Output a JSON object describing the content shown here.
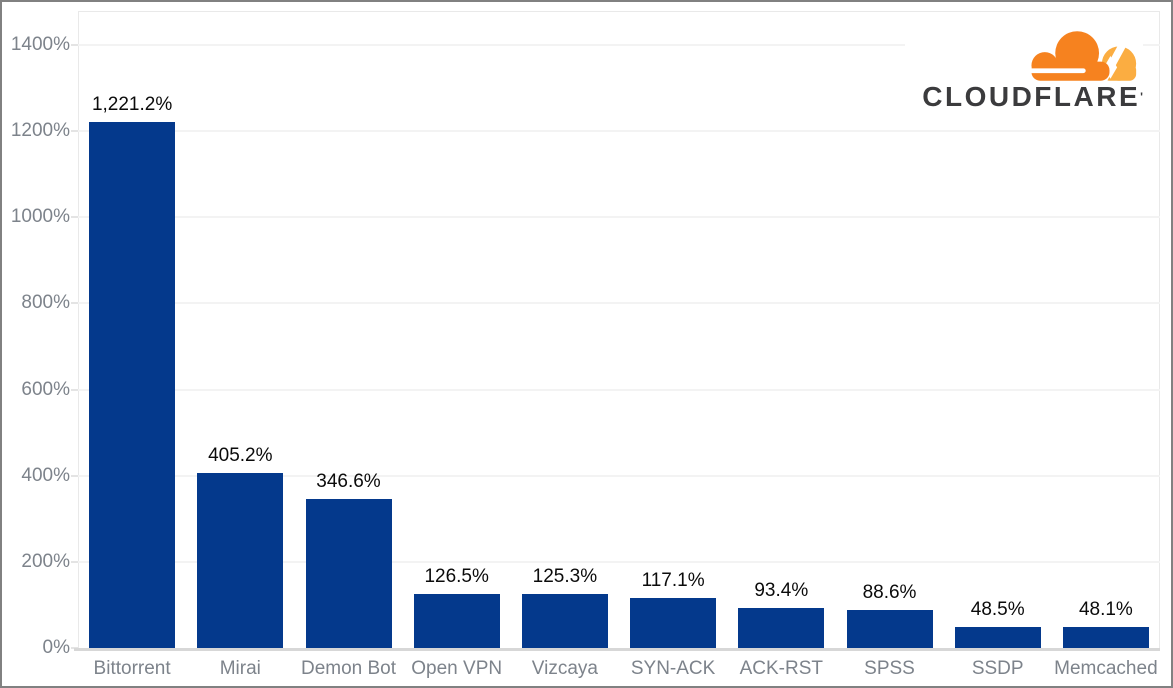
{
  "logo": {
    "wordmark": "CLOUDFLARE",
    "trademark_tick": "'",
    "cloud_front_color": "#F6821F",
    "cloud_back_color": "#FBAD41",
    "wordmark_color": "#3B3B3D"
  },
  "chart_data": {
    "type": "bar",
    "title": "",
    "xlabel": "",
    "ylabel": "",
    "categories": [
      "Bittorrent",
      "Mirai",
      "Demon Bot",
      "Open VPN",
      "Vizcaya",
      "SYN-ACK",
      "ACK-RST",
      "SPSS",
      "SSDP",
      "Memcached"
    ],
    "values": [
      1221.2,
      405.2,
      346.6,
      126.5,
      125.3,
      117.1,
      93.4,
      88.6,
      48.5,
      48.1
    ],
    "value_labels": [
      "1,221.2%",
      "405.2%",
      "346.6%",
      "126.5%",
      "125.3%",
      "117.1%",
      "93.4%",
      "88.6%",
      "48.5%",
      "48.1%"
    ],
    "y_ticks": [
      {
        "value": 0,
        "label": "0%"
      },
      {
        "value": 200,
        "label": "200%"
      },
      {
        "value": 400,
        "label": "400%"
      },
      {
        "value": 600,
        "label": "600%"
      },
      {
        "value": 800,
        "label": "800%"
      },
      {
        "value": 1000,
        "label": "1000%"
      },
      {
        "value": 1200,
        "label": "1200%"
      },
      {
        "value": 1400,
        "label": "1400%"
      }
    ],
    "ylim": [
      0,
      1478
    ],
    "grid": true,
    "legend_position": "none",
    "bar_color": "#04398C",
    "gridline_color": "#F3F3F3",
    "axis_line_color": "#D7D7D7",
    "tick_label_color": "#7D838B",
    "value_label_color": "#0B0B0B"
  }
}
